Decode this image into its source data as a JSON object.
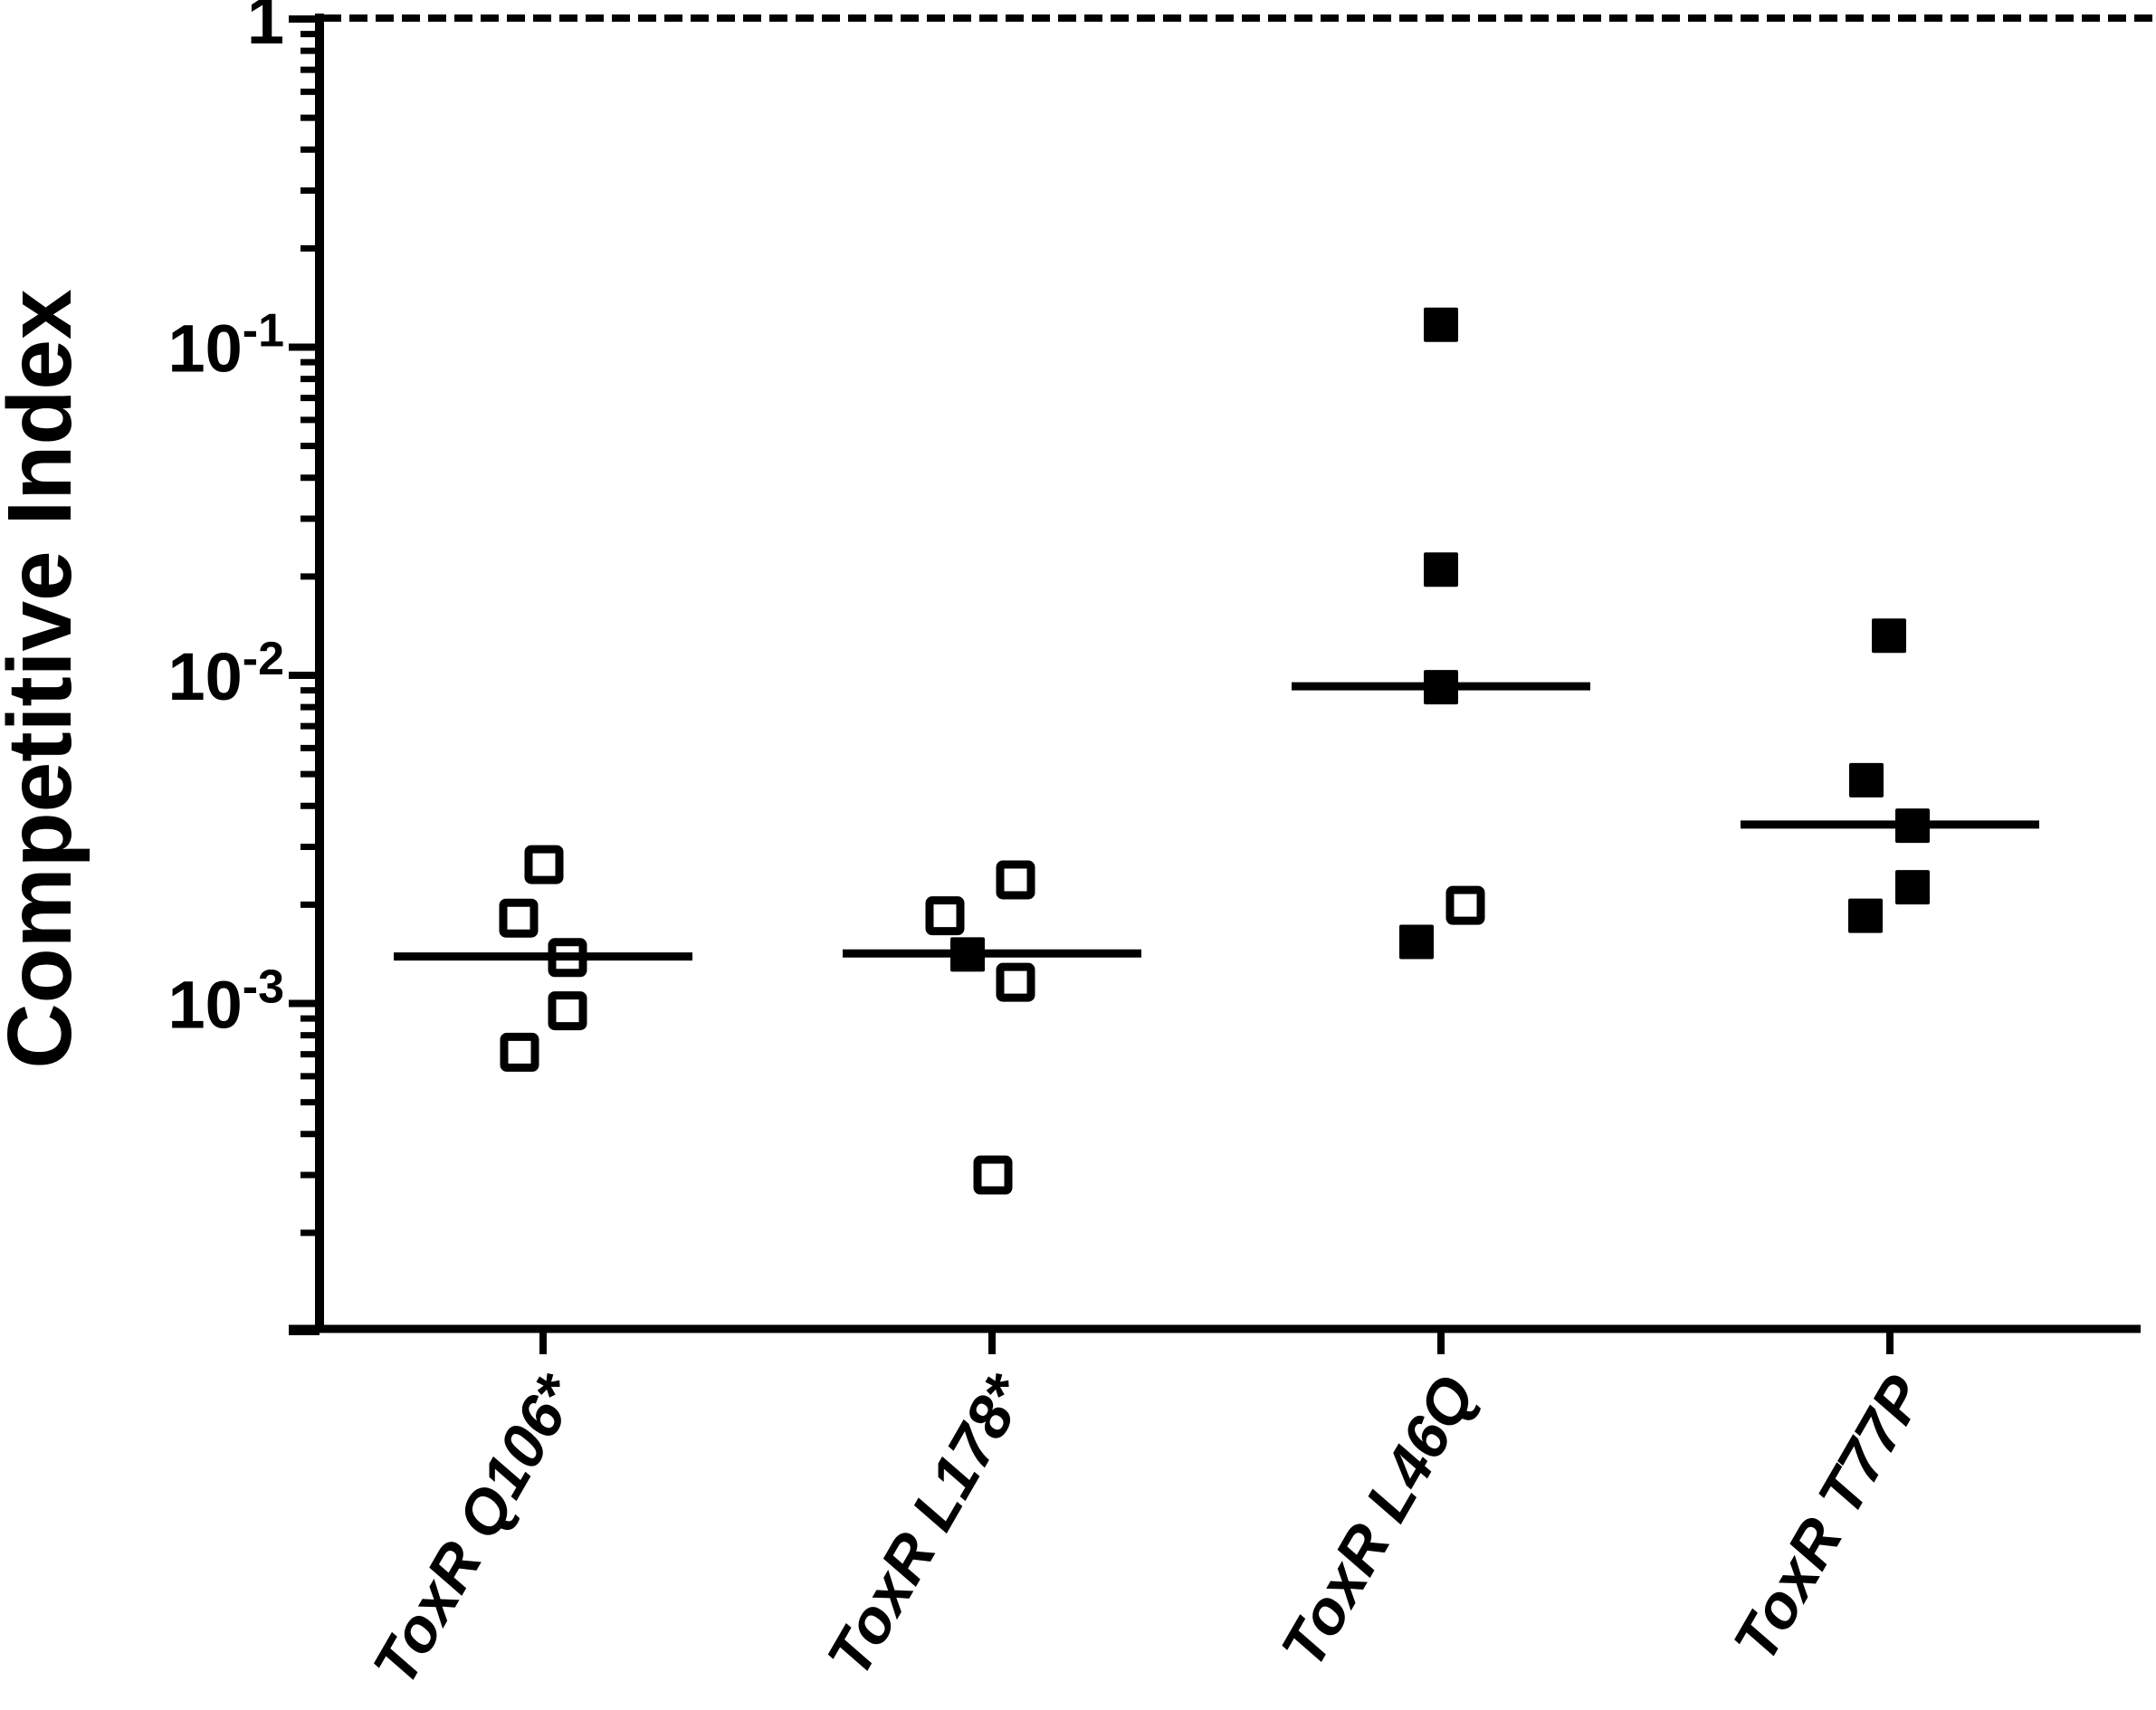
{
  "figure": {
    "background_color": "#ffffff",
    "ink_color": "#000000"
  },
  "chart_data": {
    "type": "scatter",
    "title": "",
    "xlabel": "",
    "ylabel": "Competitive Index",
    "yscale": "log",
    "ylim": [
      0.0001,
      1
    ],
    "grid": false,
    "legend": null,
    "marker_shape": "square",
    "reference_line": {
      "value": 1,
      "style": "dashed"
    },
    "ytick_values": [
      1,
      0.1,
      0.01,
      0.001
    ],
    "ytick_labels": [
      {
        "base": "1",
        "exp": ""
      },
      {
        "base": "10",
        "exp": "-1"
      },
      {
        "base": "10",
        "exp": "-2"
      },
      {
        "base": "10",
        "exp": "-3"
      }
    ],
    "categories": [
      "ToxR Q106*",
      "ToxR L178*",
      "ToxR L46Q",
      "ToxR T77P"
    ],
    "groups": [
      {
        "category": "ToxR Q106*",
        "median": 0.00139,
        "points": [
          {
            "value": 0.00265,
            "dx": 1,
            "filled": false
          },
          {
            "value": 0.00182,
            "dx": -27,
            "filled": false
          },
          {
            "value": 0.00138,
            "dx": 27,
            "filled": false
          },
          {
            "value": 0.00095,
            "dx": 27,
            "filled": false
          },
          {
            "value": 0.00071,
            "dx": -26,
            "filled": false
          }
        ]
      },
      {
        "category": "ToxR L178*",
        "median": 0.00142,
        "points": [
          {
            "value": 0.00238,
            "dx": 26,
            "filled": false
          },
          {
            "value": 0.00185,
            "dx": -52,
            "filled": false
          },
          {
            "value": 0.00141,
            "dx": -27,
            "filled": true
          },
          {
            "value": 0.00116,
            "dx": 26,
            "filled": false
          },
          {
            "value": 0.0003,
            "dx": 1,
            "filled": false
          }
        ]
      },
      {
        "category": "ToxR L46Q",
        "median": 0.00926,
        "points": [
          {
            "value": 0.117,
            "dx": 0,
            "filled": true
          },
          {
            "value": 0.021,
            "dx": 0,
            "filled": true
          },
          {
            "value": 0.0092,
            "dx": 0,
            "filled": true
          },
          {
            "value": 0.00199,
            "dx": 27,
            "filled": false
          },
          {
            "value": 0.00154,
            "dx": -27,
            "filled": true
          }
        ]
      },
      {
        "category": "ToxR T77P",
        "median": 0.00351,
        "points": [
          {
            "value": 0.0132,
            "dx": -1,
            "filled": true
          },
          {
            "value": 0.00479,
            "dx": -26,
            "filled": true
          },
          {
            "value": 0.00348,
            "dx": 25,
            "filled": true
          },
          {
            "value": 0.00226,
            "dx": 25,
            "filled": true
          },
          {
            "value": 0.00185,
            "dx": -27,
            "filled": true
          }
        ]
      }
    ]
  }
}
